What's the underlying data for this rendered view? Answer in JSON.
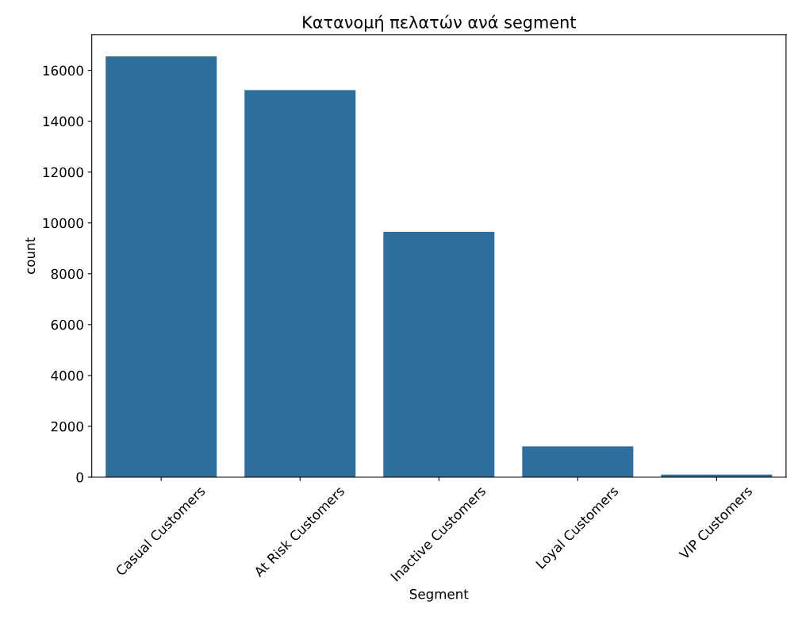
{
  "chart_data": {
    "type": "bar",
    "title": "Κατανομή πελατών ανά segment",
    "xlabel": "Segment",
    "ylabel": "count",
    "categories": [
      "Casual Customers",
      "At Risk Customers",
      "Inactive Customers",
      "Loyal Customers",
      "VIP Customers"
    ],
    "values": [
      16550,
      15220,
      9650,
      1210,
      100
    ],
    "color": "#2f6f9f",
    "ylim": [
      0,
      17400
    ],
    "yticks": [
      0,
      2000,
      4000,
      6000,
      8000,
      10000,
      12000,
      14000,
      16000
    ],
    "grid": false
  }
}
